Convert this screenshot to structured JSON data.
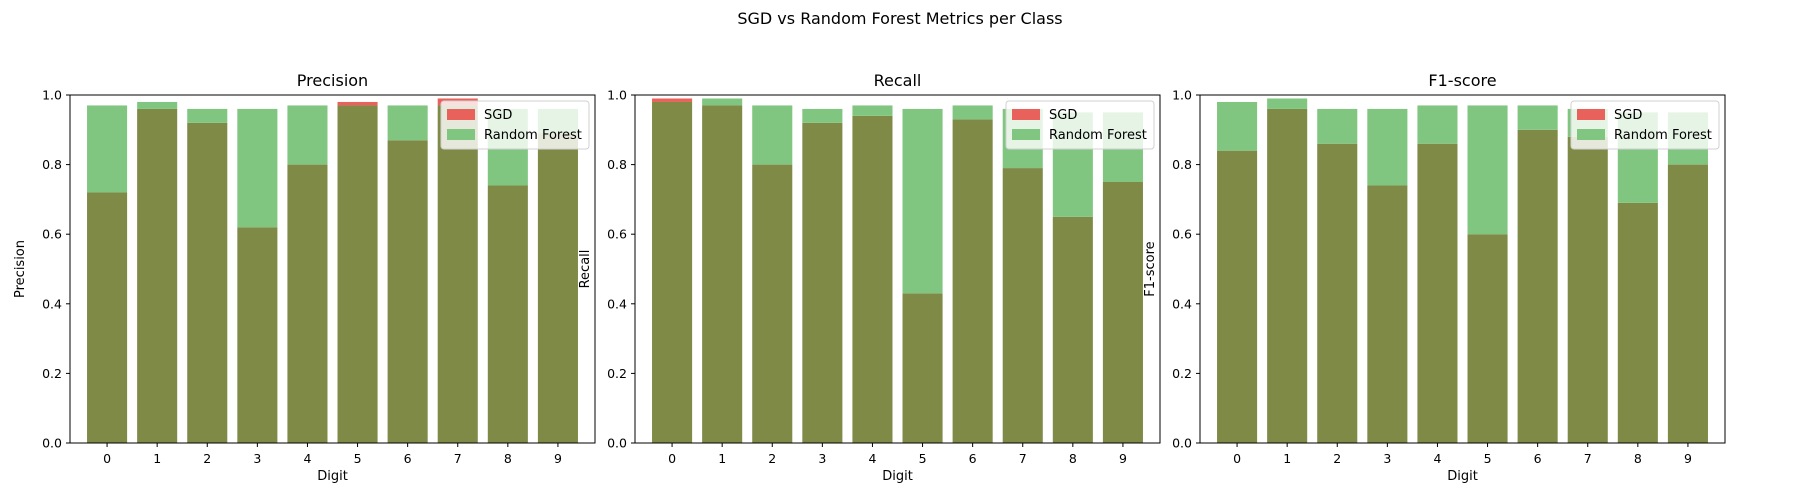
{
  "figure": {
    "suptitle": "SGD vs Random Forest Metrics per Class"
  },
  "chart_data": [
    {
      "type": "bar",
      "title": "Precision",
      "xlabel": "Digit",
      "ylabel": "Precision",
      "ylim": [
        0,
        1
      ],
      "yticks": [
        "0.0",
        "0.2",
        "0.4",
        "0.6",
        "0.8",
        "1.0"
      ],
      "categories": [
        "0",
        "1",
        "2",
        "3",
        "4",
        "5",
        "6",
        "7",
        "8",
        "9"
      ],
      "legend": "top-right",
      "series": [
        {
          "name": "SGD",
          "color": "#e8625b",
          "values": [
            0.72,
            0.96,
            0.92,
            0.62,
            0.8,
            0.98,
            0.87,
            0.99,
            0.74,
            0.89
          ]
        },
        {
          "name": "Random Forest",
          "color": "#80c680",
          "values": [
            0.97,
            0.98,
            0.96,
            0.96,
            0.97,
            0.97,
            0.97,
            0.97,
            0.96,
            0.96
          ]
        }
      ]
    },
    {
      "type": "bar",
      "title": "Recall",
      "xlabel": "Digit",
      "ylabel": "Recall",
      "ylim": [
        0,
        1
      ],
      "yticks": [
        "0.0",
        "0.2",
        "0.4",
        "0.6",
        "0.8",
        "1.0"
      ],
      "categories": [
        "0",
        "1",
        "2",
        "3",
        "4",
        "5",
        "6",
        "7",
        "8",
        "9"
      ],
      "legend": "top-right",
      "series": [
        {
          "name": "SGD",
          "color": "#e8625b",
          "values": [
            0.99,
            0.97,
            0.8,
            0.92,
            0.94,
            0.43,
            0.93,
            0.79,
            0.65,
            0.75
          ]
        },
        {
          "name": "Random Forest",
          "color": "#80c680",
          "values": [
            0.98,
            0.99,
            0.97,
            0.96,
            0.97,
            0.96,
            0.97,
            0.96,
            0.95,
            0.95
          ]
        }
      ]
    },
    {
      "type": "bar",
      "title": "F1-score",
      "xlabel": "Digit",
      "ylabel": "F1-score",
      "ylim": [
        0,
        1
      ],
      "yticks": [
        "0.0",
        "0.2",
        "0.4",
        "0.6",
        "0.8",
        "1.0"
      ],
      "categories": [
        "0",
        "1",
        "2",
        "3",
        "4",
        "5",
        "6",
        "7",
        "8",
        "9"
      ],
      "legend": "top-right",
      "series": [
        {
          "name": "SGD",
          "color": "#e8625b",
          "values": [
            0.84,
            0.96,
            0.86,
            0.74,
            0.86,
            0.6,
            0.9,
            0.88,
            0.69,
            0.8
          ]
        },
        {
          "name": "Random Forest",
          "color": "#80c680",
          "values": [
            0.98,
            0.99,
            0.96,
            0.96,
            0.97,
            0.97,
            0.97,
            0.96,
            0.95,
            0.95
          ]
        }
      ]
    }
  ]
}
